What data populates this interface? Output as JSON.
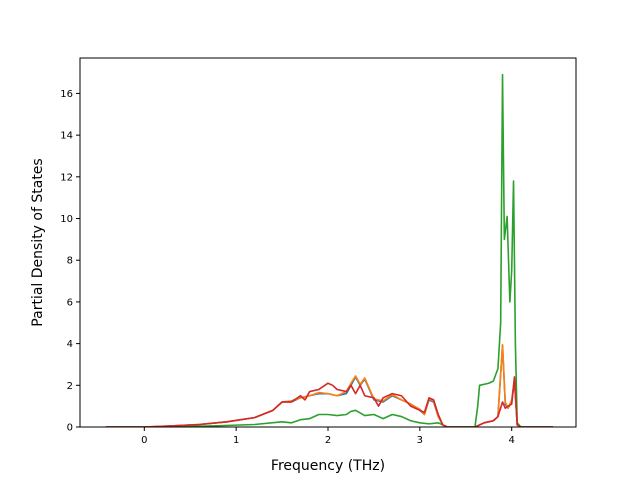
{
  "chart_data": {
    "type": "line",
    "title": "",
    "xlabel": "Frequency (THz)",
    "ylabel": "Partial Density of States",
    "xlim": [
      -0.7,
      4.7
    ],
    "ylim": [
      0,
      17.7
    ],
    "xticks": [
      0,
      1,
      2,
      3,
      4
    ],
    "yticks": [
      0,
      2,
      4,
      6,
      8,
      10,
      12,
      14,
      16
    ],
    "grid": false,
    "legend": "none",
    "series": [
      {
        "color": "#1f77b4",
        "x": [
          -0.42,
          0.0,
          0.3,
          0.6,
          0.9,
          1.2,
          1.4,
          1.5,
          1.6,
          1.7,
          1.8,
          1.9,
          2.0,
          2.1,
          2.2,
          2.25,
          2.3,
          2.35,
          2.4,
          2.5,
          2.6,
          2.7,
          2.8,
          2.9,
          3.0,
          3.05,
          3.1,
          3.15,
          3.2,
          3.25,
          3.3,
          3.35,
          3.5,
          3.6,
          3.65,
          3.7,
          3.8,
          3.85,
          3.9,
          3.93,
          3.96,
          4.0,
          4.03,
          4.06,
          4.1,
          4.2,
          4.45
        ],
        "y": [
          0,
          0,
          0.05,
          0.12,
          0.25,
          0.45,
          0.8,
          1.2,
          1.2,
          1.4,
          1.5,
          1.6,
          1.6,
          1.5,
          1.6,
          2.0,
          2.4,
          2.0,
          2.3,
          1.3,
          1.2,
          1.5,
          1.3,
          1.1,
          0.8,
          0.6,
          1.3,
          1.2,
          0.5,
          0.1,
          0.0,
          0,
          0,
          0,
          0.1,
          0.2,
          0.3,
          0.5,
          3.9,
          1.1,
          0.9,
          1.2,
          2.2,
          0.1,
          0,
          0,
          0
        ]
      },
      {
        "color": "#ff7f0e",
        "x": [
          -0.42,
          0.0,
          0.3,
          0.6,
          0.9,
          1.2,
          1.4,
          1.5,
          1.6,
          1.7,
          1.8,
          1.9,
          2.0,
          2.1,
          2.2,
          2.25,
          2.3,
          2.35,
          2.4,
          2.5,
          2.6,
          2.7,
          2.8,
          2.9,
          3.0,
          3.05,
          3.1,
          3.15,
          3.2,
          3.25,
          3.3,
          3.35,
          3.5,
          3.6,
          3.65,
          3.7,
          3.8,
          3.85,
          3.9,
          3.93,
          3.96,
          4.0,
          4.03,
          4.06,
          4.1,
          4.2,
          4.45
        ],
        "y": [
          0,
          0,
          0.05,
          0.12,
          0.25,
          0.45,
          0.8,
          1.2,
          1.25,
          1.4,
          1.5,
          1.65,
          1.6,
          1.5,
          1.7,
          2.1,
          2.45,
          2.05,
          2.35,
          1.35,
          1.25,
          1.55,
          1.3,
          1.1,
          0.85,
          0.6,
          1.35,
          1.25,
          0.5,
          0.1,
          0.0,
          0,
          0,
          0,
          0.1,
          0.2,
          0.3,
          0.5,
          3.95,
          1.2,
          0.9,
          1.3,
          2.3,
          0.1,
          0,
          0,
          0
        ]
      },
      {
        "color": "#2ca02c",
        "x": [
          -0.42,
          0.0,
          0.4,
          0.8,
          1.2,
          1.5,
          1.6,
          1.7,
          1.8,
          1.9,
          2.0,
          2.1,
          2.2,
          2.25,
          2.3,
          2.4,
          2.5,
          2.6,
          2.7,
          2.8,
          2.9,
          3.0,
          3.1,
          3.2,
          3.25,
          3.3,
          3.5,
          3.6,
          3.63,
          3.65,
          3.75,
          3.8,
          3.85,
          3.88,
          3.9,
          3.92,
          3.95,
          3.98,
          4.0,
          4.02,
          4.04,
          4.06,
          4.1,
          4.2,
          4.45
        ],
        "y": [
          0,
          0,
          0.02,
          0.06,
          0.12,
          0.25,
          0.2,
          0.35,
          0.4,
          0.6,
          0.6,
          0.55,
          0.6,
          0.75,
          0.8,
          0.55,
          0.6,
          0.4,
          0.6,
          0.5,
          0.3,
          0.2,
          0.15,
          0.2,
          0.1,
          0.0,
          0,
          0,
          1.0,
          2.0,
          2.1,
          2.2,
          2.8,
          5.0,
          16.9,
          9.0,
          10.1,
          6.0,
          7.5,
          11.8,
          4.0,
          0.2,
          0,
          0,
          0
        ]
      },
      {
        "color": "#d62728",
        "x": [
          -0.42,
          0.0,
          0.3,
          0.6,
          0.9,
          1.2,
          1.4,
          1.5,
          1.6,
          1.7,
          1.75,
          1.8,
          1.9,
          2.0,
          2.05,
          2.1,
          2.2,
          2.25,
          2.3,
          2.35,
          2.4,
          2.5,
          2.55,
          2.6,
          2.7,
          2.8,
          2.9,
          3.0,
          3.05,
          3.1,
          3.15,
          3.2,
          3.25,
          3.3,
          3.35,
          3.5,
          3.6,
          3.65,
          3.7,
          3.8,
          3.85,
          3.9,
          3.93,
          3.96,
          4.0,
          4.03,
          4.06,
          4.1,
          4.2,
          4.45
        ],
        "y": [
          0,
          0,
          0.05,
          0.12,
          0.25,
          0.45,
          0.8,
          1.2,
          1.2,
          1.5,
          1.3,
          1.7,
          1.8,
          2.1,
          2.0,
          1.8,
          1.7,
          2.0,
          1.6,
          2.0,
          1.5,
          1.4,
          1.0,
          1.4,
          1.6,
          1.5,
          1.0,
          0.8,
          0.7,
          1.4,
          1.3,
          0.6,
          0.1,
          0.0,
          0,
          0,
          0,
          0.1,
          0.2,
          0.3,
          0.5,
          1.2,
          0.9,
          1.0,
          1.1,
          2.4,
          0.1,
          0,
          0,
          0
        ]
      }
    ]
  }
}
